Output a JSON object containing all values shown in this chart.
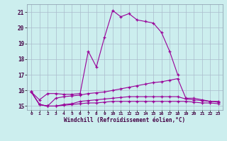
{
  "x": [
    0,
    1,
    2,
    3,
    4,
    5,
    6,
    7,
    8,
    9,
    10,
    11,
    12,
    13,
    14,
    15,
    16,
    17,
    18,
    19,
    20,
    21,
    22,
    23
  ],
  "line1": [
    15.9,
    15.4,
    15.8,
    15.8,
    15.75,
    15.75,
    15.8,
    18.5,
    17.5,
    19.4,
    21.1,
    20.7,
    20.9,
    20.5,
    20.4,
    20.3,
    19.7,
    18.5,
    17.0,
    null,
    null,
    null,
    null,
    null
  ],
  "line2": [
    15.9,
    15.1,
    15.0,
    15.5,
    15.6,
    15.65,
    15.7,
    15.8,
    15.85,
    15.9,
    16.0,
    16.1,
    16.2,
    16.3,
    16.4,
    16.5,
    16.55,
    16.65,
    16.75,
    15.5,
    15.5,
    15.4,
    15.3,
    15.3
  ],
  "line3": [
    15.9,
    15.1,
    15.0,
    15.0,
    15.1,
    15.15,
    15.3,
    15.35,
    15.4,
    15.45,
    15.5,
    15.55,
    15.6,
    15.6,
    15.6,
    15.6,
    15.6,
    15.6,
    15.6,
    15.45,
    15.4,
    15.35,
    15.3,
    15.25
  ],
  "line4": [
    15.9,
    15.1,
    15.0,
    15.0,
    15.05,
    15.1,
    15.15,
    15.2,
    15.2,
    15.25,
    15.3,
    15.3,
    15.3,
    15.3,
    15.3,
    15.3,
    15.3,
    15.3,
    15.3,
    15.3,
    15.25,
    15.2,
    15.2,
    15.15
  ],
  "color": "#990099",
  "bg_color": "#cceeee",
  "grid_color": "#aabbcc",
  "xlabel": "Windchill (Refroidissement éolien,°C)",
  "ylim": [
    14.75,
    21.5
  ],
  "xlim": [
    -0.5,
    23.5
  ],
  "yticks": [
    15,
    16,
    17,
    18,
    19,
    20,
    21
  ],
  "xticks": [
    0,
    1,
    2,
    3,
    4,
    5,
    6,
    7,
    8,
    9,
    10,
    11,
    12,
    13,
    14,
    15,
    16,
    17,
    18,
    19,
    20,
    21,
    22,
    23
  ],
  "marker": "+"
}
